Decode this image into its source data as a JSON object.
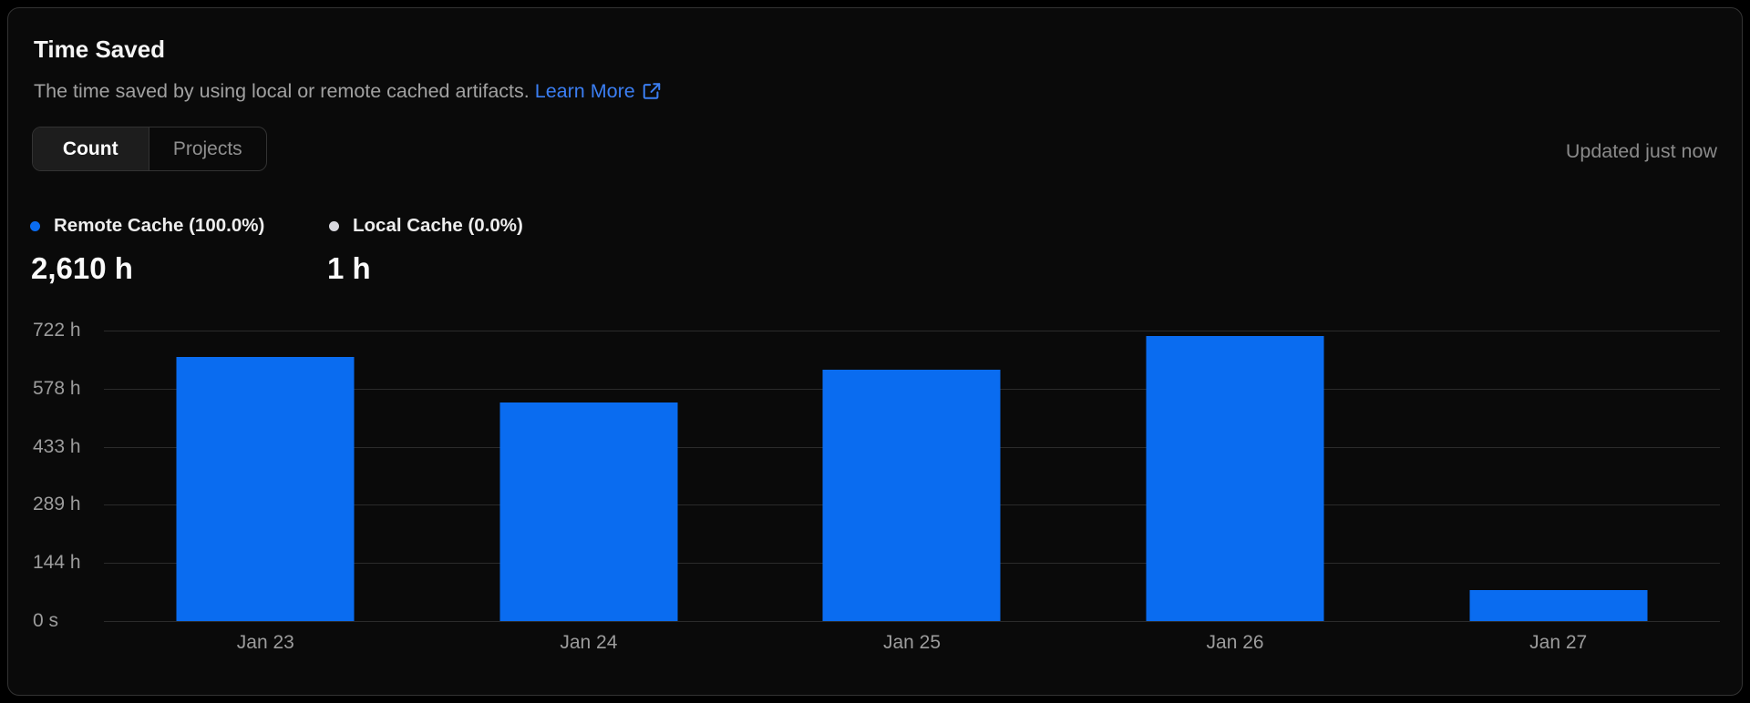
{
  "header": {
    "title": "Time Saved",
    "subtitle": "The time saved by using local or remote cached artifacts.",
    "learn_more_label": "Learn More",
    "updated_label": "Updated just now"
  },
  "toggle": {
    "options": [
      {
        "label": "Count",
        "selected": true
      },
      {
        "label": "Projects",
        "selected": false
      }
    ]
  },
  "legend": [
    {
      "label": "Remote Cache (100.0%)",
      "value": "2,610 h",
      "color": "#0a6cf0"
    },
    {
      "label": "Local Cache (0.0%)",
      "value": "1 h",
      "color": "#d8d8de"
    }
  ],
  "colors": {
    "bar_blue": "#0a6cf0",
    "link_blue": "#3b7ef2",
    "gridline": "#2b2b2b",
    "card_background": "#0a0a0a",
    "card_border": "#333333"
  },
  "icons": {
    "learn_more": "external-link-icon",
    "remote_legend": "blue-dot",
    "local_legend": "gray-dot"
  },
  "chart_data": {
    "type": "bar",
    "title": "Time Saved",
    "categories": [
      "Jan 23",
      "Jan 24",
      "Jan 25",
      "Jan 26",
      "Jan 27"
    ],
    "series": [
      {
        "name": "Remote Cache",
        "values": [
          656,
          544,
          624,
          708,
          78
        ]
      }
    ],
    "unit": "h",
    "total_remote_hours": "2,610 h",
    "total_local_hours": "1 h",
    "ylim": [
      0,
      722
    ],
    "y_ticks": [
      {
        "label": "722 h",
        "value": 722
      },
      {
        "label": "578 h",
        "value": 578
      },
      {
        "label": "433 h",
        "value": 433
      },
      {
        "label": "289 h",
        "value": 289
      },
      {
        "label": "144 h",
        "value": 144
      },
      {
        "label": "0 s",
        "value": 0
      }
    ],
    "grid": true,
    "legend_position": "top-left"
  }
}
